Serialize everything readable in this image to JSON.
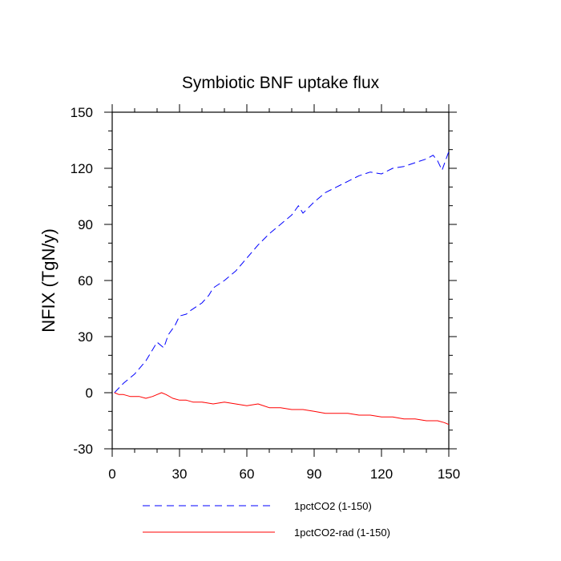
{
  "chart_data": {
    "type": "line",
    "title": "Symbiotic BNF uptake flux",
    "xlabel": "",
    "ylabel": "NFIX  (TgN/y)",
    "xlim": [
      0,
      150
    ],
    "ylim": [
      -30,
      150
    ],
    "xticks": [
      0,
      30,
      60,
      90,
      120,
      150
    ],
    "yticks": [
      -30,
      0,
      30,
      60,
      90,
      120,
      150
    ],
    "grid": false,
    "legend_position": "bottom",
    "series": [
      {
        "name": "1pctCO2 (1-150)",
        "color": "#0000ff",
        "style": "dashed",
        "x": [
          1,
          5,
          10,
          15,
          20,
          23,
          25,
          28,
          30,
          33,
          35,
          40,
          43,
          45,
          50,
          55,
          60,
          65,
          70,
          75,
          80,
          83,
          85,
          90,
          95,
          100,
          105,
          110,
          115,
          120,
          125,
          130,
          135,
          140,
          143,
          145,
          147,
          150
        ],
        "y": [
          0,
          5,
          10,
          17,
          27,
          24,
          31,
          36,
          41,
          42,
          44,
          48,
          52,
          56,
          60,
          65,
          72,
          79,
          85,
          90,
          95,
          100,
          96,
          102,
          107,
          110,
          113,
          116,
          118,
          117,
          120,
          121,
          123,
          125,
          127,
          124,
          119,
          129
        ]
      },
      {
        "name": "1pctCO2-rad (1-150)",
        "color": "#ff0000",
        "style": "solid",
        "x": [
          1,
          3,
          5,
          8,
          10,
          12,
          15,
          18,
          20,
          22,
          24,
          27,
          30,
          33,
          36,
          40,
          45,
          50,
          55,
          60,
          65,
          70,
          75,
          80,
          85,
          90,
          95,
          100,
          105,
          110,
          115,
          120,
          125,
          130,
          135,
          140,
          145,
          148,
          150
        ],
        "y": [
          0,
          -1,
          -1,
          -2,
          -2,
          -2,
          -3,
          -2,
          -1,
          0,
          -1,
          -3,
          -4,
          -4,
          -5,
          -5,
          -6,
          -5,
          -6,
          -7,
          -6,
          -8,
          -8,
          -9,
          -9,
          -10,
          -11,
          -11,
          -11,
          -12,
          -12,
          -13,
          -13,
          -14,
          -14,
          -15,
          -15,
          -16,
          -17
        ]
      }
    ]
  }
}
